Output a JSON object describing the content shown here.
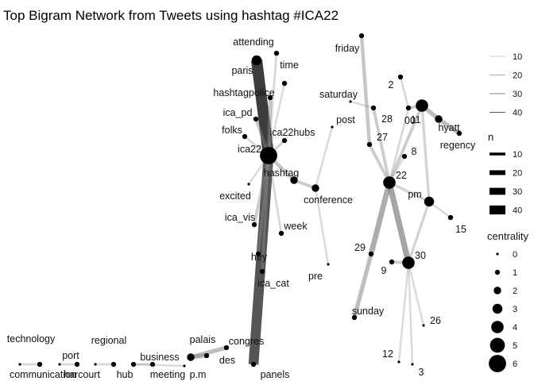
{
  "title": "Top Bigram Network from Tweets using hashtag #ICA22",
  "colors": {
    "edge": "#999999",
    "node": "#000000",
    "background": "#ffffff"
  },
  "nodes": [
    {
      "id": "attending",
      "centrality": 1
    },
    {
      "id": "paris",
      "centrality": 3
    },
    {
      "id": "time",
      "centrality": 1
    },
    {
      "id": "hashtagpolice",
      "centrality": 1
    },
    {
      "id": "ica_pd",
      "centrality": 1
    },
    {
      "id": "folks",
      "centrality": 1
    },
    {
      "id": "ica22hubs",
      "centrality": 1
    },
    {
      "id": "ica22",
      "centrality": 6
    },
    {
      "id": "hashtag",
      "centrality": 2
    },
    {
      "id": "excited",
      "centrality": 0
    },
    {
      "id": "conference",
      "centrality": 2
    },
    {
      "id": "post",
      "centrality": 0
    },
    {
      "id": "ica_vis",
      "centrality": 1
    },
    {
      "id": "week",
      "centrality": 1
    },
    {
      "id": "hey",
      "centrality": 1
    },
    {
      "id": "ica_cat",
      "centrality": 1
    },
    {
      "id": "pre",
      "centrality": 0
    },
    {
      "id": "panels",
      "centrality": 1
    },
    {
      "id": "congres",
      "centrality": 1
    },
    {
      "id": "palais",
      "centrality": 1
    },
    {
      "id": "des",
      "centrality": 2
    },
    {
      "id": "business",
      "centrality": 1
    },
    {
      "id": "p.m",
      "centrality": 0
    },
    {
      "id": "meeting",
      "centrality": 1
    },
    {
      "id": "regional",
      "centrality": 0
    },
    {
      "id": "hub",
      "centrality": 1
    },
    {
      "id": "harcourt",
      "centrality": 0
    },
    {
      "id": "port",
      "centrality": 1
    },
    {
      "id": "technology",
      "centrality": 0
    },
    {
      "id": "communication",
      "centrality": 1
    },
    {
      "id": "friday",
      "centrality": 1
    },
    {
      "id": "saturday",
      "centrality": 0
    },
    {
      "id": "28",
      "centrality": 1
    },
    {
      "id": "27",
      "centrality": 1
    },
    {
      "id": "2",
      "centrality": 1
    },
    {
      "id": "00",
      "centrality": 1
    },
    {
      "id": "11",
      "centrality": 4
    },
    {
      "id": "hyatt",
      "centrality": 2
    },
    {
      "id": "regency",
      "centrality": 1
    },
    {
      "id": "8",
      "centrality": 1
    },
    {
      "id": "22",
      "centrality": 4
    },
    {
      "id": "pm",
      "centrality": 3
    },
    {
      "id": "15",
      "centrality": 1
    },
    {
      "id": "29",
      "centrality": 1
    },
    {
      "id": "9",
      "centrality": 1
    },
    {
      "id": "30",
      "centrality": 4
    },
    {
      "id": "sunday",
      "centrality": 1
    },
    {
      "id": "26",
      "centrality": 0
    },
    {
      "id": "12",
      "centrality": 0
    },
    {
      "id": "3",
      "centrality": 0
    }
  ],
  "edges": [
    {
      "from": "paris",
      "to": "ica22",
      "n": 45
    },
    {
      "from": "ica22",
      "to": "panels",
      "n": 40
    },
    {
      "from": "hashtagpolice",
      "to": "ica22",
      "n": 12
    },
    {
      "from": "attending",
      "to": "ica22",
      "n": 6
    },
    {
      "from": "time",
      "to": "ica22",
      "n": 5
    },
    {
      "from": "ica22hubs",
      "to": "ica22",
      "n": 8
    },
    {
      "from": "ica_pd",
      "to": "ica22",
      "n": 10
    },
    {
      "from": "folks",
      "to": "ica22",
      "n": 6
    },
    {
      "from": "ica22",
      "to": "hashtag",
      "n": 12
    },
    {
      "from": "excited",
      "to": "ica22",
      "n": 5
    },
    {
      "from": "ica_vis",
      "to": "ica22",
      "n": 10
    },
    {
      "from": "ica22",
      "to": "week",
      "n": 6
    },
    {
      "from": "hey",
      "to": "ica22",
      "n": 8
    },
    {
      "from": "ica_cat",
      "to": "ica22",
      "n": 8
    },
    {
      "from": "hashtag",
      "to": "conference",
      "n": 10
    },
    {
      "from": "post",
      "to": "conference",
      "n": 5
    },
    {
      "from": "pre",
      "to": "conference",
      "n": 5
    },
    {
      "from": "palais",
      "to": "des",
      "n": 15
    },
    {
      "from": "des",
      "to": "congres",
      "n": 15
    },
    {
      "from": "business",
      "to": "meeting",
      "n": 6
    },
    {
      "from": "meeting",
      "to": "p.m",
      "n": 5
    },
    {
      "from": "regional",
      "to": "hub",
      "n": 6
    },
    {
      "from": "harcourt",
      "to": "port",
      "n": 6
    },
    {
      "from": "technology",
      "to": "communication",
      "n": 6
    },
    {
      "from": "friday",
      "to": "27",
      "n": 12
    },
    {
      "from": "saturday",
      "to": "28",
      "n": 5
    },
    {
      "from": "28",
      "to": "22",
      "n": 10
    },
    {
      "from": "27",
      "to": "22",
      "n": 10
    },
    {
      "from": "2",
      "to": "00",
      "n": 6
    },
    {
      "from": "00",
      "to": "11",
      "n": 10
    },
    {
      "from": "11",
      "to": "hyatt",
      "n": 15
    },
    {
      "from": "hyatt",
      "to": "regency",
      "n": 15
    },
    {
      "from": "11",
      "to": "22",
      "n": 10
    },
    {
      "from": "00",
      "to": "22",
      "n": 6
    },
    {
      "from": "8",
      "to": "22",
      "n": 5
    },
    {
      "from": "11",
      "to": "pm",
      "n": 8
    },
    {
      "from": "22",
      "to": "pm",
      "n": 8
    },
    {
      "from": "pm",
      "to": "15",
      "n": 5
    },
    {
      "from": "pm",
      "to": "30",
      "n": 8
    },
    {
      "from": "22",
      "to": "29",
      "n": 20
    },
    {
      "from": "22",
      "to": "30",
      "n": 22
    },
    {
      "from": "29",
      "to": "sunday",
      "n": 15
    },
    {
      "from": "9",
      "to": "30",
      "n": 10
    },
    {
      "from": "30",
      "to": "26",
      "n": 5
    },
    {
      "from": "30",
      "to": "12",
      "n": 5
    },
    {
      "from": "30",
      "to": "3",
      "n": 5
    }
  ],
  "legend_alpha": {
    "title": "",
    "entries": [
      "10",
      "20",
      "30",
      "40"
    ]
  },
  "legend_n": {
    "title": "n",
    "entries": [
      "10",
      "20",
      "30",
      "40"
    ]
  },
  "legend_centrality": {
    "title": "centrality",
    "entries": [
      "0",
      "1",
      "2",
      "3",
      "4",
      "5",
      "6"
    ]
  }
}
